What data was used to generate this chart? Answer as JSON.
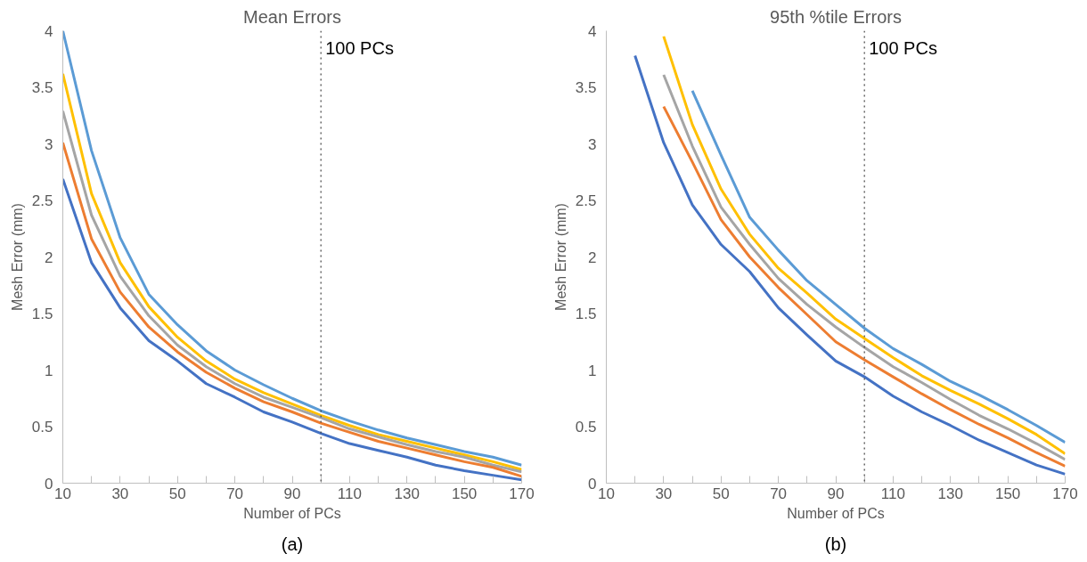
{
  "chart_data": [
    {
      "type": "line",
      "title": "Mean Errors",
      "xlabel": "Number of PCs",
      "ylabel": "Mesh Error (mm)",
      "annotations": [
        "(a)"
      ],
      "x": [
        10,
        20,
        30,
        40,
        50,
        60,
        70,
        80,
        90,
        100,
        110,
        120,
        130,
        140,
        150,
        160,
        170
      ],
      "xlim": [
        10,
        170
      ],
      "xticks": [
        10,
        {
          "value": 20,
          "label": null
        },
        30,
        {
          "value": 40,
          "label": null
        },
        50,
        {
          "value": 60,
          "label": null
        },
        70,
        {
          "value": 80,
          "label": null
        },
        90,
        {
          "value": 100,
          "label": null
        },
        110,
        {
          "value": 120,
          "label": null
        },
        130,
        {
          "value": 140,
          "label": null
        },
        150,
        {
          "value": 160,
          "label": null
        },
        170
      ],
      "ylim": [
        0,
        4
      ],
      "yticks": [
        0,
        0.5,
        1,
        1.5,
        2,
        2.5,
        3,
        3.5,
        4
      ],
      "grid": false,
      "marker": "none",
      "line_style": "solid",
      "ref_lines": [
        {
          "axis": "x",
          "value": 100,
          "label": "100 PCs",
          "color": "#404040",
          "line_style": "dotted"
        }
      ],
      "series": [
        {
          "color": "#5b9bd5",
          "values": [
            4.0,
            2.94,
            2.17,
            1.67,
            1.4,
            1.17,
            1.0,
            0.87,
            0.75,
            0.64,
            0.55,
            0.47,
            0.4,
            0.34,
            0.28,
            0.23,
            0.16
          ]
        },
        {
          "color": "#ffc000",
          "values": [
            3.62,
            2.56,
            1.95,
            1.56,
            1.29,
            1.08,
            0.92,
            0.8,
            0.7,
            0.6,
            0.51,
            0.43,
            0.37,
            0.31,
            0.25,
            0.19,
            0.12
          ]
        },
        {
          "color": "#a5a5a5",
          "values": [
            3.29,
            2.37,
            1.83,
            1.48,
            1.22,
            1.03,
            0.88,
            0.76,
            0.67,
            0.58,
            0.48,
            0.41,
            0.34,
            0.28,
            0.23,
            0.16,
            0.1
          ]
        },
        {
          "color": "#ed7d31",
          "values": [
            3.01,
            2.16,
            1.69,
            1.38,
            1.16,
            0.98,
            0.84,
            0.72,
            0.63,
            0.53,
            0.45,
            0.37,
            0.31,
            0.25,
            0.19,
            0.14,
            0.06
          ]
        },
        {
          "color": "#4472c4",
          "values": [
            2.69,
            1.95,
            1.55,
            1.26,
            1.08,
            0.88,
            0.76,
            0.63,
            0.54,
            0.44,
            0.35,
            0.29,
            0.23,
            0.16,
            0.11,
            0.07,
            0.03
          ]
        }
      ]
    },
    {
      "type": "line",
      "title": "95th %tile Errors",
      "xlabel": "Number of PCs",
      "ylabel": "Mesh Error (mm)",
      "annotations": [
        "(b)"
      ],
      "x": [
        20,
        30,
        40,
        50,
        60,
        70,
        80,
        90,
        100,
        110,
        120,
        130,
        140,
        150,
        160,
        170
      ],
      "xlim": [
        10,
        170
      ],
      "xticks": [
        10,
        {
          "value": 20,
          "label": null
        },
        30,
        {
          "value": 40,
          "label": null
        },
        50,
        {
          "value": 60,
          "label": null
        },
        70,
        {
          "value": 80,
          "label": null
        },
        90,
        {
          "value": 100,
          "label": null
        },
        110,
        {
          "value": 120,
          "label": null
        },
        130,
        {
          "value": 140,
          "label": null
        },
        150,
        {
          "value": 160,
          "label": null
        },
        170
      ],
      "ylim": [
        0,
        4
      ],
      "yticks": [
        0,
        0.5,
        1,
        1.5,
        2,
        2.5,
        3,
        3.5,
        4
      ],
      "grid": false,
      "marker": "none",
      "line_style": "solid",
      "ref_lines": [
        {
          "axis": "x",
          "value": 100,
          "label": "100 PCs",
          "color": "#404040",
          "line_style": "dotted"
        }
      ],
      "series": [
        {
          "color": "#5b9bd5",
          "values": [
            null,
            null,
            3.47,
            2.9,
            2.35,
            2.06,
            1.79,
            1.58,
            1.37,
            1.19,
            1.05,
            0.9,
            0.78,
            0.65,
            0.51,
            0.36
          ]
        },
        {
          "color": "#ffc000",
          "values": [
            null,
            3.95,
            3.17,
            2.6,
            2.2,
            1.9,
            1.68,
            1.45,
            1.28,
            1.11,
            0.95,
            0.82,
            0.7,
            0.57,
            0.43,
            0.26
          ]
        },
        {
          "color": "#a5a5a5",
          "values": [
            null,
            3.61,
            2.98,
            2.44,
            2.11,
            1.81,
            1.58,
            1.38,
            1.2,
            1.03,
            0.89,
            0.74,
            0.6,
            0.48,
            0.35,
            0.21
          ]
        },
        {
          "color": "#ed7d31",
          "values": [
            null,
            3.33,
            2.84,
            2.33,
            2.0,
            1.73,
            1.49,
            1.25,
            1.09,
            0.94,
            0.79,
            0.65,
            0.52,
            0.4,
            0.27,
            0.15
          ]
        },
        {
          "color": "#4472c4",
          "values": [
            3.78,
            3.01,
            2.46,
            2.11,
            1.87,
            1.55,
            1.31,
            1.08,
            0.94,
            0.77,
            0.63,
            0.51,
            0.38,
            0.27,
            0.16,
            0.08
          ]
        }
      ]
    }
  ]
}
